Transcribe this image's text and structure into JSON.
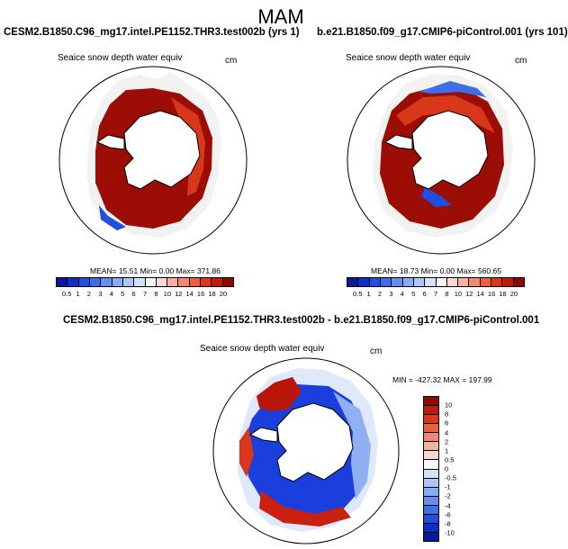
{
  "figure": {
    "title": "MAM"
  },
  "panels": {
    "left": {
      "title": "CESM2.B1850.C96_mg17.intel.PE1152.THR3.test002b (yrs 1)",
      "variable": "Seaice snow depth water equiv",
      "units": "cm",
      "mean_label": "MEAN=",
      "mean": "15.51",
      "min_label": "Min=",
      "min": "0.00",
      "max_label": "Max=",
      "max": "371.86"
    },
    "right": {
      "title": "b.e21.B1850.f09_g17.CMIP6-piControl.001 (yrs 101)",
      "variable": "Seaice snow depth water equiv",
      "units": "cm",
      "mean_label": "MEAN=",
      "mean": "18.73",
      "min_label": "Min=",
      "min": "0.00",
      "max_label": "Max=",
      "max": "560.65"
    },
    "diff": {
      "title": "CESM2.B1850.C96_mg17.intel.PE1152.THR3.test002b - b.e21.B1850.f09_g17.CMIP6-piControl.001",
      "variable": "Seaice snow depth water equiv",
      "units": "cm",
      "min_label": "MIN =",
      "min": "-427.32",
      "max_label": "MAX =",
      "max": "197.99"
    }
  },
  "colorbars": {
    "absolute": {
      "labels": [
        "0.5",
        "1",
        "2",
        "3",
        "4",
        "5",
        "6",
        "7",
        "8",
        "10",
        "12",
        "14",
        "16",
        "18",
        "20"
      ],
      "colors": [
        "#08199c",
        "#0c2fc8",
        "#1f4fe0",
        "#3f6fe8",
        "#628ff0",
        "#87abf4",
        "#adc6f7",
        "#d3e1fb",
        "#f7f7f7",
        "#fbd7cf",
        "#f7b0a0",
        "#f38870",
        "#ec6040",
        "#dc3818",
        "#bf1c08",
        "#8c0a02"
      ]
    },
    "difference": {
      "labels": [
        "10",
        "8",
        "6",
        "4",
        "2",
        "1",
        "0.5",
        "0",
        "-0.5",
        "-1",
        "-2",
        "-4",
        "-6",
        "-8",
        "-10"
      ],
      "colors": [
        "#8c0a02",
        "#bf1c08",
        "#dc3818",
        "#ec6040",
        "#f38870",
        "#f7b0a0",
        "#fbd7cf",
        "#f7f7f7",
        "#d3e1fb",
        "#adc6f7",
        "#87abf4",
        "#628ff0",
        "#3f6fe8",
        "#1f4fe0",
        "#0c2fc8",
        "#08199c"
      ]
    }
  },
  "palette": {
    "snow_high": "#9b0d05",
    "snow_mid": "#d8371a",
    "snow_low": "#f4a38b",
    "diff_positive": "#b81608",
    "diff_negative": "#1b3fdc",
    "diff_light_neg": "#8fb0f2",
    "continent_outline": "#000000"
  }
}
